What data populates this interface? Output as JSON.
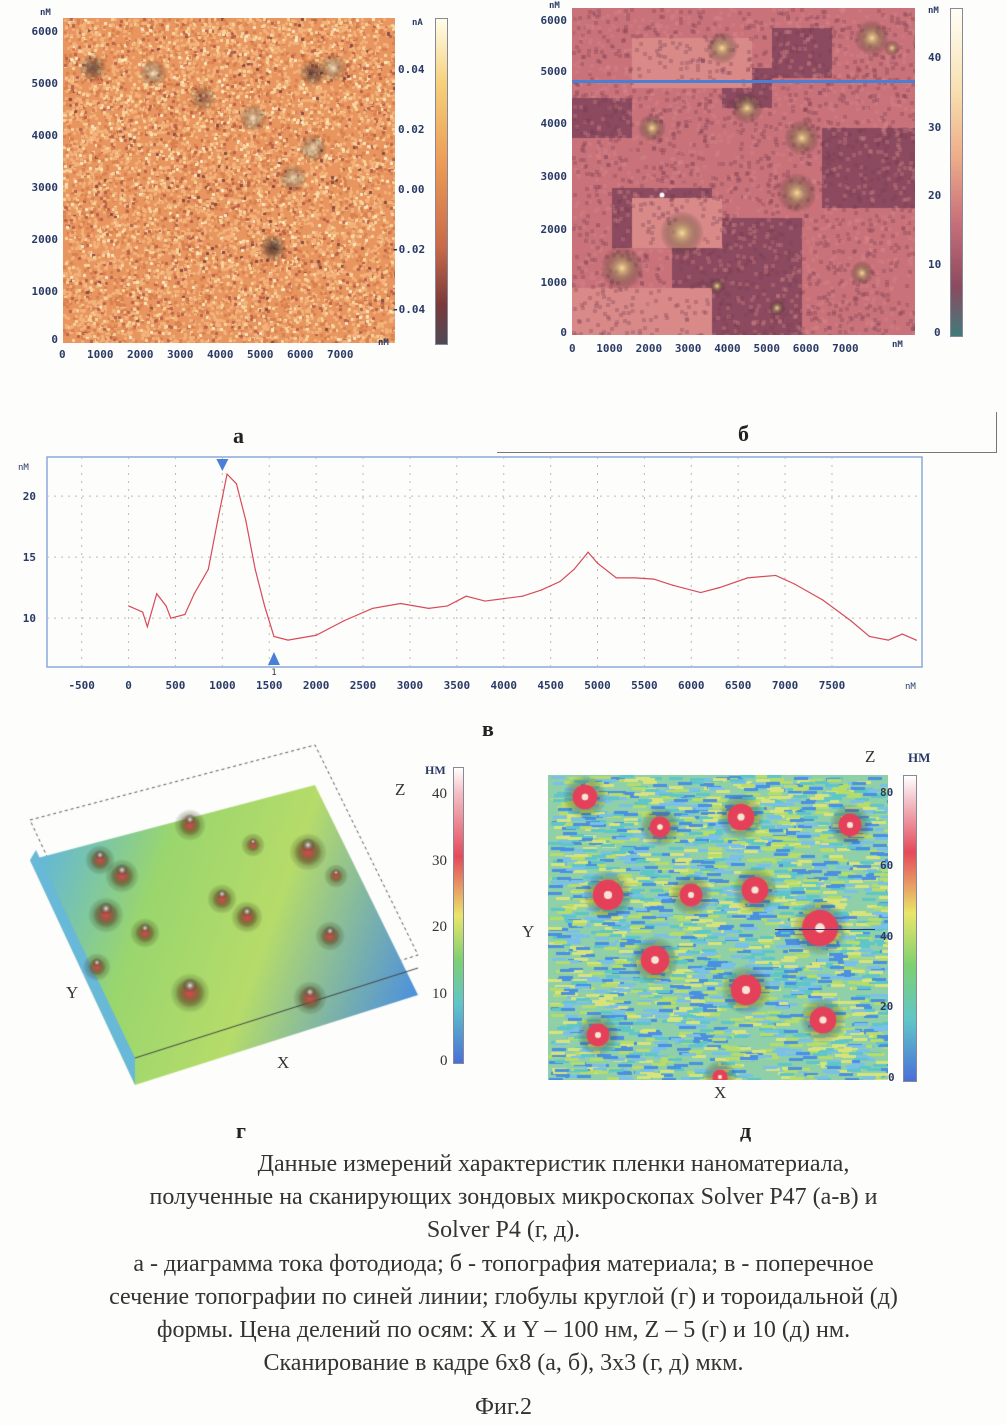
{
  "panel_a": {
    "label": "а",
    "unit_axis": "nM",
    "unit_color": "nA",
    "y_ticks": [
      "6000",
      "5000",
      "4000",
      "3000",
      "2000",
      "1000",
      "0"
    ],
    "x_ticks": [
      "0",
      "1000",
      "2000",
      "3000",
      "4000",
      "5000",
      "6000",
      "7000"
    ],
    "color_ticks": [
      "0.04",
      "0.02",
      "0.00",
      "-0.02",
      "-0.04"
    ]
  },
  "panel_b": {
    "label": "б",
    "unit_axis": "nM",
    "unit_color": "nM",
    "y_ticks": [
      "6000",
      "5000",
      "4000",
      "3000",
      "2000",
      "1000",
      "0"
    ],
    "x_ticks": [
      "0",
      "1000",
      "2000",
      "3000",
      "4000",
      "5000",
      "6000",
      "7000"
    ],
    "color_ticks": [
      "40",
      "30",
      "20",
      "10",
      "0"
    ],
    "line_color": "#4a7fd6"
  },
  "panel_v": {
    "label": "в",
    "marker_label": "1"
  },
  "panel_g": {
    "label": "г",
    "z_label": "Z",
    "y_label": "Y",
    "x_label": "X",
    "unit": "НМ",
    "color_ticks": [
      "40",
      "30",
      "20",
      "10",
      "0"
    ]
  },
  "panel_d": {
    "label": "д",
    "z_label": "Z",
    "y_label": "Y",
    "x_label": "X",
    "unit": "НМ",
    "color_ticks": [
      "80",
      "60",
      "40",
      "20",
      "0"
    ]
  },
  "caption": {
    "line1": "Данные измерений характеристик пленки наноматериала,",
    "line2": "полученные на сканирующих зондовых микроскопах Solver P47 (а-в) и",
    "line3": "Solver P4 (г, д).",
    "line4": "а - диаграмма тока фотодиода; б - топография материала; в - поперечное",
    "line5": "сечение топографии по синей линии; глобулы круглой (г) и тороидальной (д)",
    "line6": "формы. Цена делений по осям: X и Y – 100 нм, Z – 5 (г) и 10 (д) нм.",
    "line7": "Сканирование в кадре 6х8 (а, б), 3х3 (г, д) мкм.",
    "fig": "Фиг.2"
  },
  "chart_data": {
    "type": "line",
    "title": "",
    "xlabel": "nM",
    "ylabel": "nM",
    "x_ticks": [
      -500,
      0,
      500,
      1000,
      1500,
      2000,
      2500,
      3000,
      3500,
      4000,
      4500,
      5000,
      5500,
      6000,
      6500,
      7000,
      7500
    ],
    "y_ticks": [
      10,
      15,
      20
    ],
    "xlim": [
      -870,
      8460
    ],
    "ylim": [
      6,
      23.2
    ],
    "grid": true,
    "line_color": "#d84a5a",
    "markers": [
      {
        "x": 1000,
        "label": "▼"
      },
      {
        "x": 1550,
        "label": "▲"
      }
    ],
    "x": [
      0,
      150,
      200,
      300,
      400,
      450,
      600,
      700,
      850,
      950,
      1050,
      1150,
      1250,
      1350,
      1450,
      1550,
      1700,
      2000,
      2300,
      2600,
      2900,
      3200,
      3400,
      3600,
      3800,
      4000,
      4200,
      4400,
      4600,
      4750,
      4900,
      5000,
      5200,
      5400,
      5600,
      5800,
      6100,
      6300,
      6600,
      6900,
      7100,
      7400,
      7700,
      7900,
      8100,
      8250,
      8400
    ],
    "y": [
      11,
      10.5,
      9.3,
      12,
      11,
      10,
      10.3,
      12,
      14,
      18,
      21.8,
      21,
      18,
      14,
      11,
      8.5,
      8.2,
      8.6,
      9.8,
      10.8,
      11.2,
      10.8,
      11,
      11.8,
      11.4,
      11.6,
      11.8,
      12.3,
      13,
      14,
      15.4,
      14.5,
      13.3,
      13.3,
      13.2,
      12.7,
      12.1,
      12.5,
      13.3,
      13.5,
      12.8,
      11.5,
      9.8,
      8.5,
      8.2,
      8.7,
      8.2
    ]
  }
}
